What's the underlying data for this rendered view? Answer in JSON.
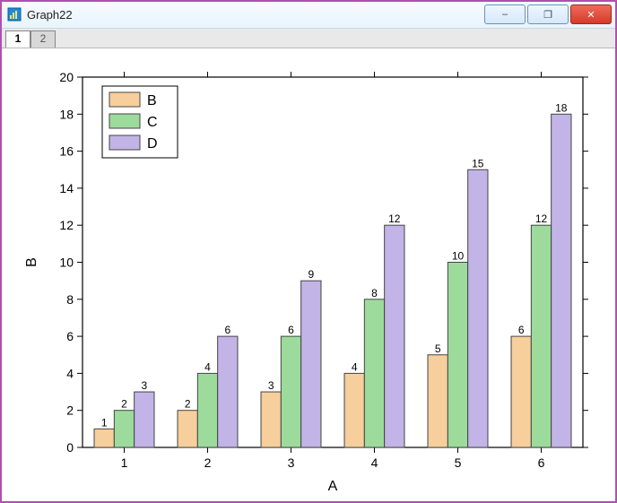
{
  "window": {
    "title": "Graph22",
    "minimize_label": "–",
    "maximize_label": "❐",
    "close_label": "✕"
  },
  "tabs": [
    {
      "label": "1",
      "active": true
    },
    {
      "label": "2",
      "active": false
    }
  ],
  "chart": {
    "type": "bar",
    "background_color": "#ffffff",
    "axes_color": "#000000",
    "xlabel": "A",
    "ylabel": "B",
    "label_fontsize": 16,
    "xlim": [
      0.5,
      6.5
    ],
    "ylim": [
      0,
      20
    ],
    "xticks": [
      1,
      2,
      3,
      4,
      5,
      6
    ],
    "yticks": [
      0,
      2,
      4,
      6,
      8,
      10,
      12,
      14,
      16,
      18,
      20
    ],
    "tick_fontsize": 14,
    "bar_group_width": 0.72,
    "bar_border_color": "#444444",
    "value_label_fontsize": 12,
    "legend": {
      "position": "top-left",
      "border_color": "#000000",
      "background": "#ffffff",
      "fontsize": 16
    },
    "series": [
      {
        "name": "B",
        "color": "#f7cf9c",
        "values": [
          1,
          2,
          3,
          4,
          5,
          6
        ]
      },
      {
        "name": "C",
        "color": "#9cdb9c",
        "values": [
          2,
          4,
          6,
          8,
          10,
          12
        ]
      },
      {
        "name": "D",
        "color": "#c2b4e6",
        "values": [
          3,
          6,
          9,
          12,
          15,
          18
        ]
      }
    ],
    "categories": [
      1,
      2,
      3,
      4,
      5,
      6
    ]
  }
}
